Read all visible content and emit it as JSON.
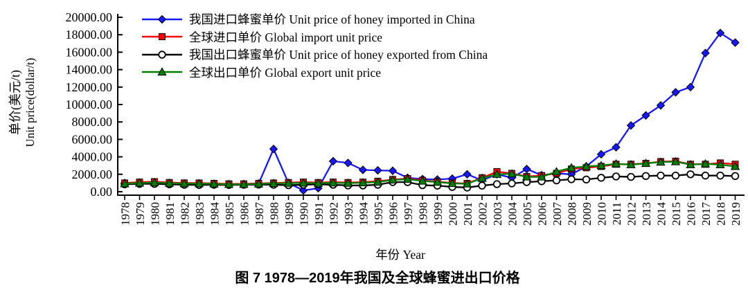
{
  "figure": {
    "caption": "图 7  1978—2019年我国及全球蜂蜜进出口价格",
    "x_axis_title": "年份 Year",
    "y_axis_title_zh": "单价(美元/t)",
    "y_axis_title_en": "Unit price(dollar/t)"
  },
  "chart_data": {
    "type": "line",
    "title": "",
    "xlabel": "年份 Year",
    "ylabel": "单价(美元/t) Unit price(dollar/t)",
    "ylim": [
      0,
      20000
    ],
    "ytick_step": 2000,
    "ytick_decimals": 2,
    "grid": false,
    "legend_position": "top-left-inside",
    "x": [
      1978,
      1979,
      1980,
      1981,
      1982,
      1983,
      1984,
      1985,
      1986,
      1987,
      1988,
      1989,
      1990,
      1991,
      1992,
      1993,
      1994,
      1995,
      1996,
      1997,
      1998,
      1999,
      2000,
      2001,
      2002,
      2003,
      2004,
      2005,
      2006,
      2007,
      2008,
      2009,
      2010,
      2011,
      2012,
      2013,
      2014,
      2015,
      2016,
      2017,
      2018,
      2019
    ],
    "series": [
      {
        "name": "china-import-price",
        "label": "我国进口蜂蜜单价 Unit price of honey imported in China",
        "color": "#1616ff",
        "marker": "diamond",
        "values": [
          1000,
          1050,
          1080,
          1000,
          950,
          900,
          900,
          850,
          880,
          950,
          4900,
          1000,
          150,
          400,
          3500,
          3300,
          2500,
          2450,
          2400,
          1600,
          1450,
          1400,
          1500,
          2000,
          1300,
          2000,
          1600,
          2600,
          1900,
          2100,
          2000,
          2900,
          4300,
          5100,
          7600,
          8750,
          9900,
          11400,
          12000,
          15900,
          18200,
          17100
        ]
      },
      {
        "name": "global-import-price",
        "label": "全球进口单价 Global import unit price",
        "color": "#fd0000",
        "marker": "square",
        "values": [
          1000,
          1100,
          1150,
          1050,
          1000,
          1000,
          950,
          900,
          900,
          950,
          1000,
          1050,
          1100,
          1050,
          1100,
          1050,
          1100,
          1200,
          1400,
          1500,
          1300,
          1150,
          1000,
          950,
          1600,
          2300,
          2100,
          1750,
          1850,
          2100,
          2600,
          2750,
          2900,
          3150,
          3150,
          3250,
          3450,
          3500,
          3150,
          3150,
          3300,
          3150
        ]
      },
      {
        "name": "china-export-price",
        "label": "我国出口蜂蜜单价 Unit price of honey exported from China",
        "color": "#000000",
        "marker": "circle-open",
        "values": [
          850,
          900,
          900,
          850,
          800,
          780,
          800,
          780,
          800,
          820,
          800,
          750,
          800,
          850,
          800,
          720,
          720,
          800,
          1100,
          1100,
          750,
          700,
          550,
          480,
          700,
          870,
          950,
          1100,
          1200,
          1300,
          1430,
          1400,
          1600,
          1750,
          1700,
          1800,
          1850,
          1850,
          2000,
          1850,
          1850,
          1800
        ]
      },
      {
        "name": "global-export-price",
        "label": "全球出口单价 Global export unit price",
        "color": "#008000",
        "marker": "triangle",
        "values": [
          920,
          1000,
          1050,
          980,
          930,
          930,
          900,
          850,
          850,
          900,
          950,
          980,
          1000,
          980,
          1020,
          980,
          1030,
          1100,
          1350,
          1430,
          1230,
          1100,
          950,
          900,
          1550,
          2000,
          2050,
          1700,
          1700,
          2300,
          2750,
          2900,
          3000,
          3200,
          3100,
          3250,
          3400,
          3450,
          3100,
          3200,
          3100,
          2900
        ]
      }
    ]
  }
}
